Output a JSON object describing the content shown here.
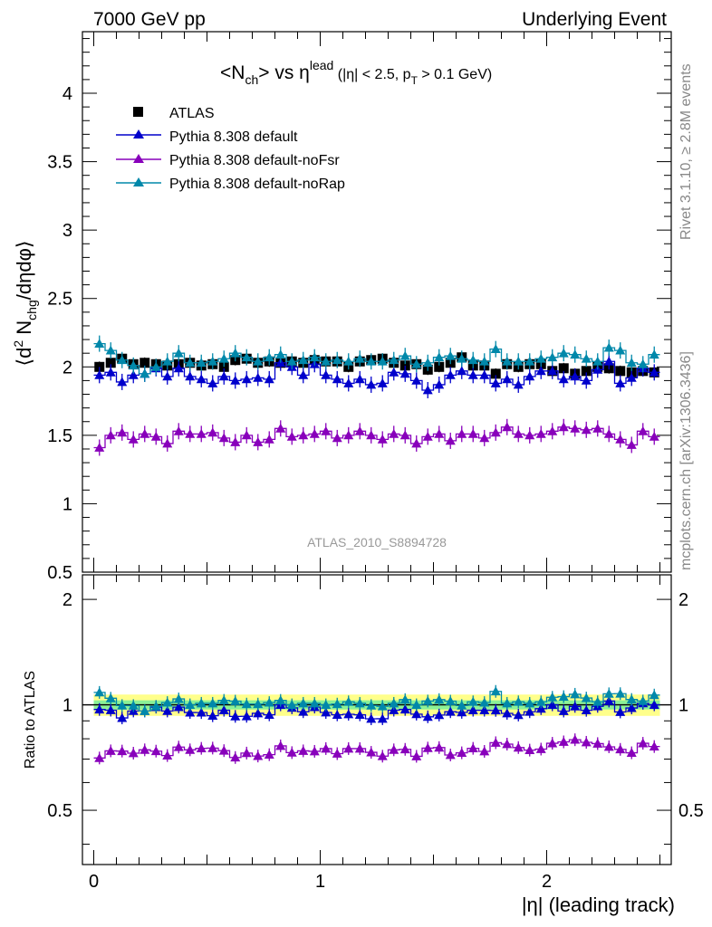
{
  "header": {
    "left": "7000 GeV pp",
    "right": "Underlying Event"
  },
  "side_labels": {
    "rivet": "Rivet 3.1.10, ≥ 2.8M events",
    "mcplots": "mcplots.cern.ch [arXiv:1306.3436]"
  },
  "watermark": "ATLAS_2010_S8894728",
  "title": {
    "part1": "<N",
    "sub1": "ch",
    "part2": "> vs η",
    "sup": "lead",
    "cut1": " (|η| < 2.5, p",
    "cut_sub": "T",
    "cut2": " > 0.1 GeV)"
  },
  "axes": {
    "ylabel_top": {
      "a": "⟨d",
      "sup": "2",
      "b": " N",
      "sub": "chg",
      "c": "/dηdφ⟩"
    },
    "ylabel_bottom": "Ratio to ATLAS",
    "xlabel": "|η| (leading track)",
    "top_ticks": [
      "0.5",
      "1",
      "1.5",
      "2",
      "2.5",
      "3",
      "3.5",
      "4"
    ],
    "bottom_ticks": [
      "0.5",
      "1",
      "2"
    ],
    "x_ticks": [
      "0",
      "1",
      "2"
    ]
  },
  "chart_data": {
    "type": "scatter",
    "xlim": [
      -0.05,
      2.55
    ],
    "ylim_top": [
      0.5,
      4.45
    ],
    "ylim_ratio": [
      0.35,
      2.35
    ],
    "ratio_log": true,
    "x": [
      0.025,
      0.075,
      0.125,
      0.175,
      0.225,
      0.275,
      0.325,
      0.375,
      0.425,
      0.475,
      0.525,
      0.575,
      0.625,
      0.675,
      0.725,
      0.775,
      0.825,
      0.875,
      0.925,
      0.975,
      1.025,
      1.075,
      1.125,
      1.175,
      1.225,
      1.275,
      1.325,
      1.375,
      1.425,
      1.475,
      1.525,
      1.575,
      1.625,
      1.675,
      1.725,
      1.775,
      1.825,
      1.875,
      1.925,
      1.975,
      2.025,
      2.075,
      2.125,
      2.175,
      2.225,
      2.275,
      2.325,
      2.375,
      2.425,
      2.475
    ],
    "series": [
      {
        "name": "ATLAS",
        "color": "#000000",
        "marker": "square",
        "values": [
          2.0,
          2.03,
          2.06,
          2.02,
          2.03,
          2.02,
          2.01,
          2.02,
          2.03,
          2.01,
          2.02,
          2.0,
          2.05,
          2.06,
          2.03,
          2.04,
          2.03,
          2.04,
          2.03,
          2.05,
          2.04,
          2.04,
          2.0,
          2.04,
          2.05,
          2.06,
          2.03,
          2.01,
          2.02,
          1.98,
          2.0,
          2.03,
          2.07,
          2.01,
          2.01,
          1.95,
          2.02,
          2.0,
          2.02,
          2.02,
          1.97,
          1.99,
          1.95,
          1.97,
          2.0,
          1.99,
          1.97,
          1.96,
          1.97,
          1.96
        ]
      },
      {
        "name": "Pythia 8.308 default",
        "color": "#0000cc",
        "marker": "triangle",
        "values": [
          1.94,
          1.96,
          1.89,
          1.94,
          1.95,
          1.99,
          1.93,
          1.99,
          1.93,
          1.91,
          1.88,
          1.93,
          1.9,
          1.91,
          1.92,
          1.91,
          2.03,
          2.0,
          1.94,
          2.02,
          1.94,
          1.91,
          1.88,
          1.91,
          1.87,
          1.88,
          1.96,
          1.95,
          1.9,
          1.83,
          1.87,
          1.94,
          1.97,
          1.94,
          1.94,
          1.88,
          1.91,
          1.87,
          1.93,
          1.97,
          1.97,
          1.91,
          1.93,
          1.9,
          1.98,
          2.04,
          1.88,
          1.92,
          1.99,
          1.96
        ]
      },
      {
        "name": "Pythia 8.308 default-noFsr",
        "color": "#8800bb",
        "marker": "triangle",
        "values": [
          1.41,
          1.5,
          1.52,
          1.47,
          1.51,
          1.49,
          1.44,
          1.53,
          1.51,
          1.51,
          1.52,
          1.48,
          1.45,
          1.5,
          1.45,
          1.47,
          1.55,
          1.49,
          1.5,
          1.51,
          1.53,
          1.48,
          1.5,
          1.53,
          1.5,
          1.47,
          1.51,
          1.5,
          1.44,
          1.49,
          1.51,
          1.46,
          1.51,
          1.51,
          1.48,
          1.52,
          1.56,
          1.51,
          1.5,
          1.51,
          1.53,
          1.56,
          1.55,
          1.54,
          1.55,
          1.51,
          1.47,
          1.43,
          1.53,
          1.49
        ]
      },
      {
        "name": "Pythia 8.308 default-noRap",
        "color": "#0088aa",
        "marker": "triangle",
        "values": [
          2.17,
          2.12,
          2.05,
          2.01,
          1.95,
          2.0,
          2.04,
          2.1,
          2.03,
          2.03,
          2.04,
          2.06,
          2.1,
          2.07,
          2.04,
          2.07,
          2.09,
          2.04,
          2.05,
          2.07,
          2.04,
          2.05,
          2.04,
          2.06,
          2.04,
          2.04,
          2.05,
          2.08,
          2.02,
          2.03,
          2.07,
          2.08,
          2.06,
          2.05,
          2.04,
          2.13,
          2.04,
          2.04,
          2.04,
          2.06,
          2.07,
          2.1,
          2.09,
          2.06,
          2.04,
          2.14,
          2.12,
          2.03,
          2.02,
          2.09
        ]
      }
    ],
    "ratio_band_inner": 0.03,
    "ratio_band_outer": 0.07
  }
}
